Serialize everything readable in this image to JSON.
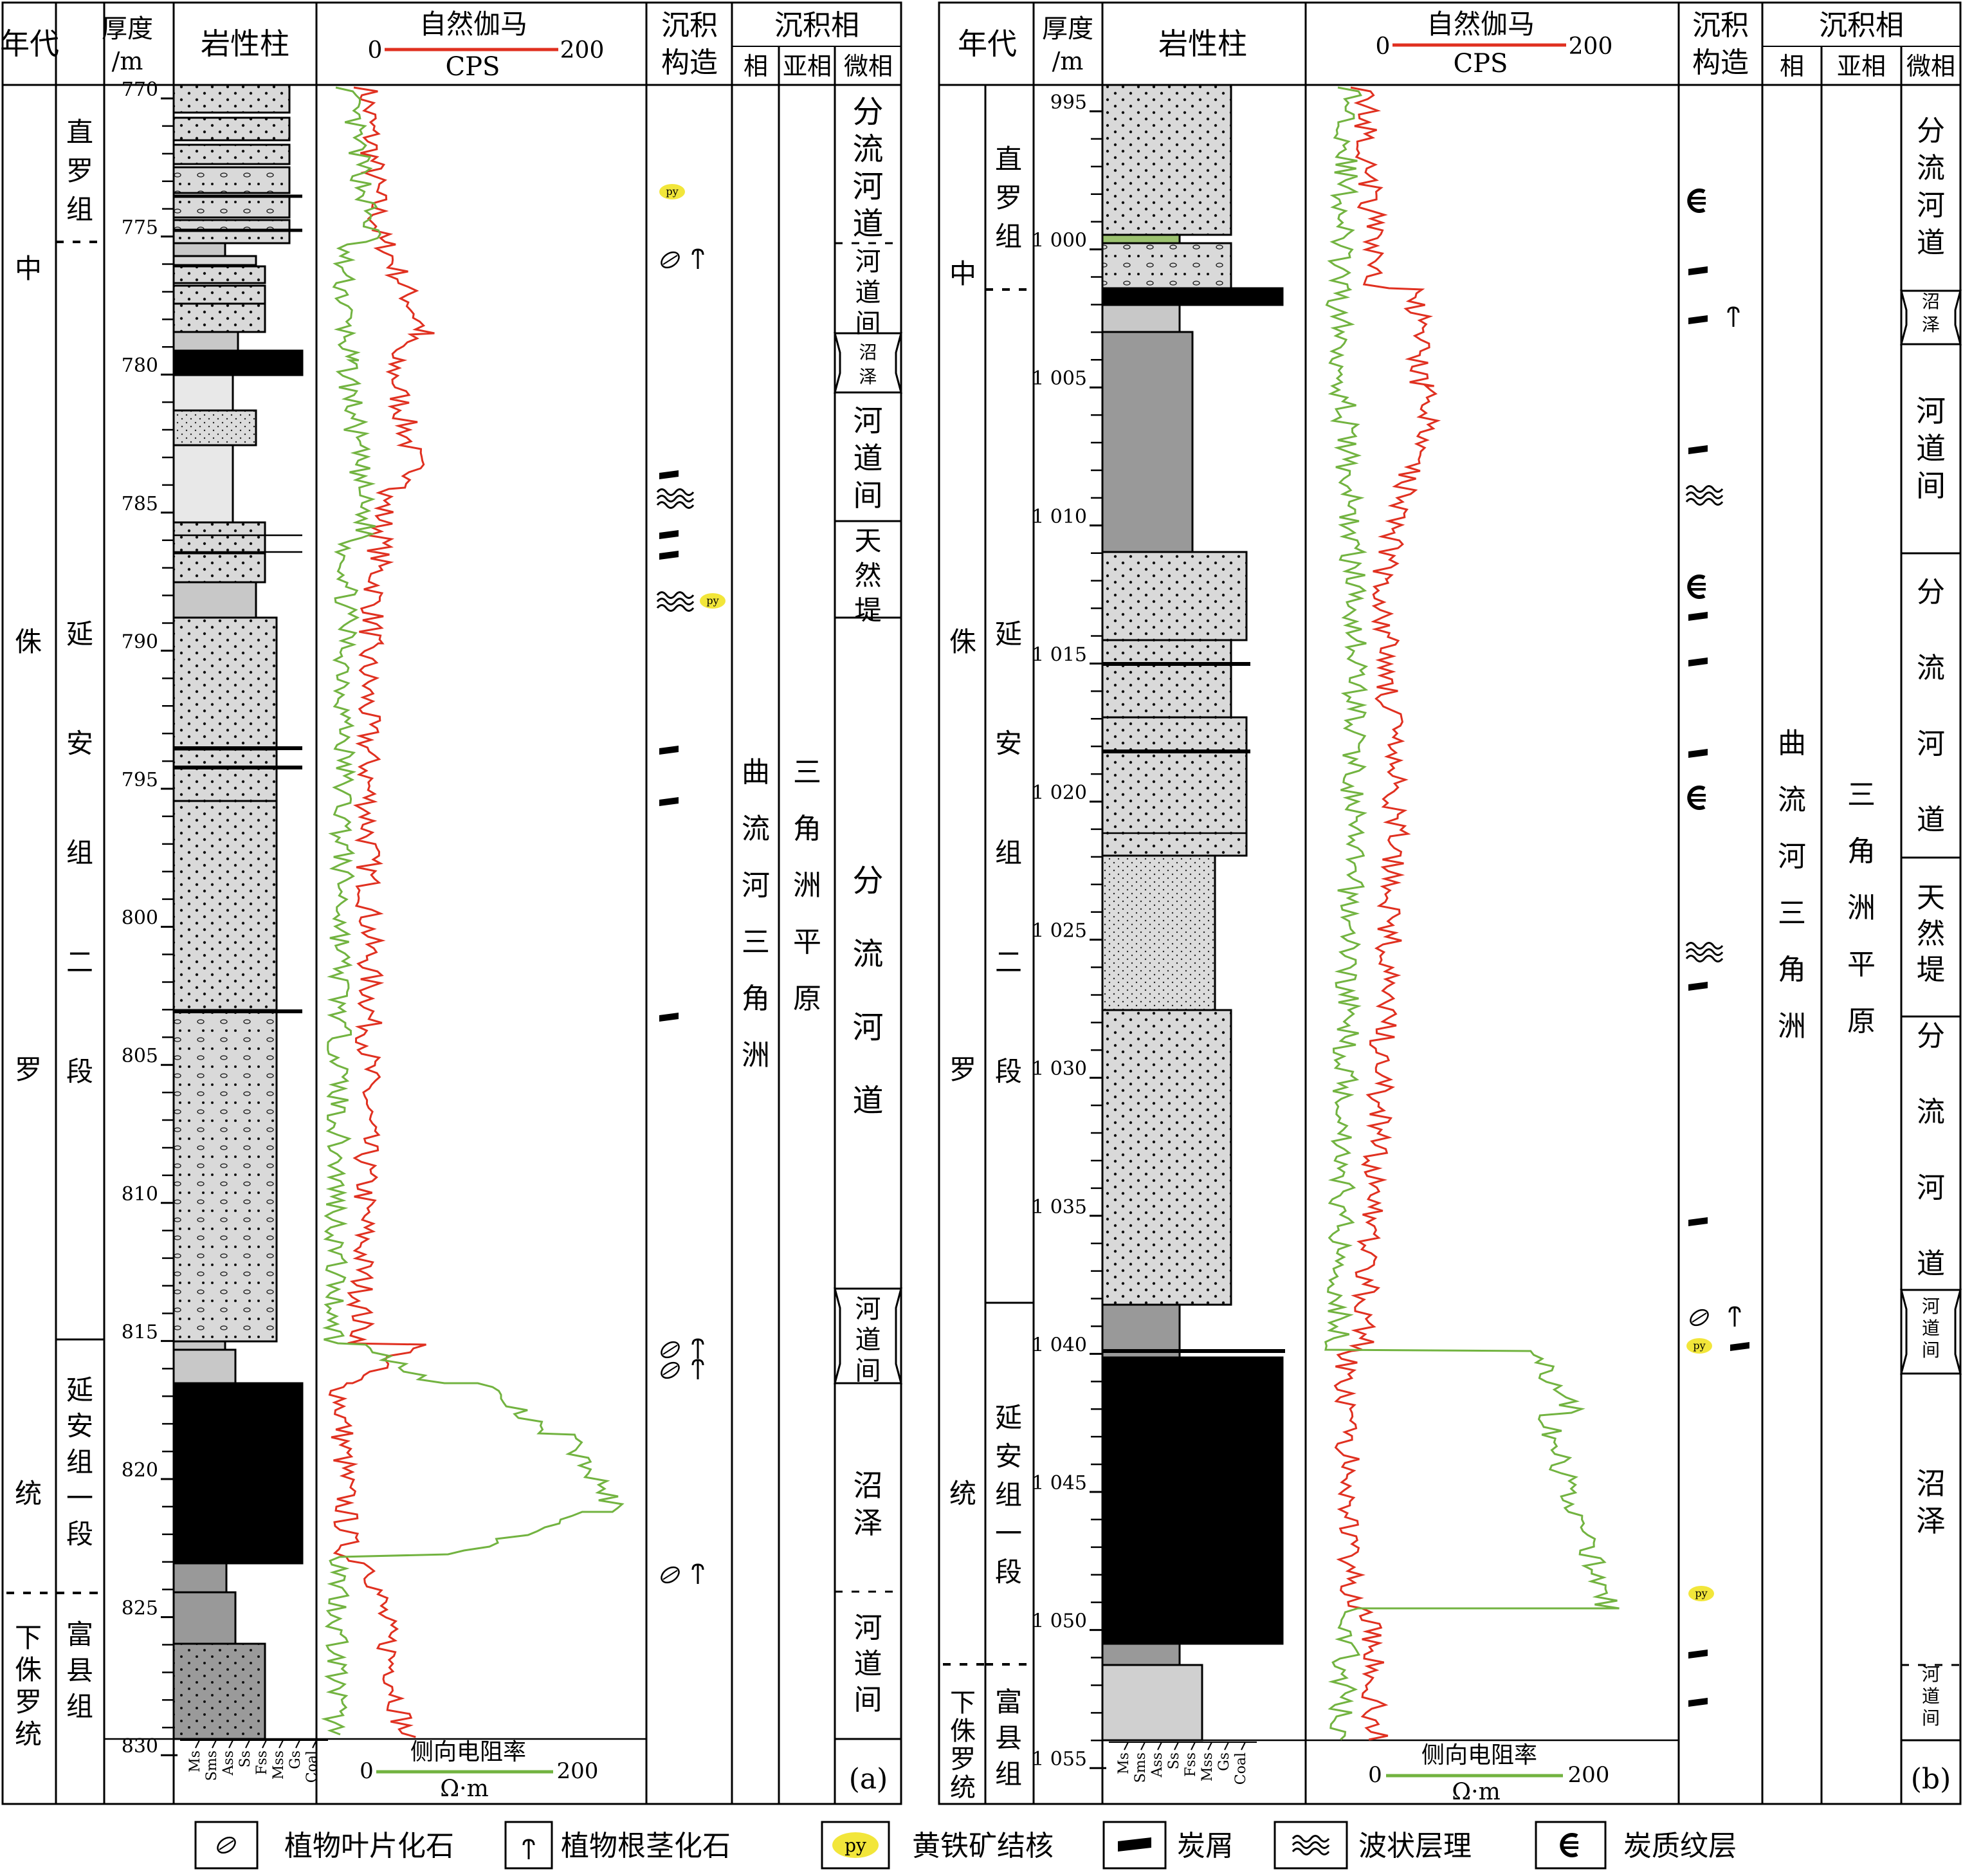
{
  "headers": {
    "era": "年代",
    "depth_line1": "厚度",
    "depth_line2": "/m",
    "lithology": "岩性柱",
    "gamma_title": "自然伽马",
    "gamma_min": "0",
    "gamma_max": "200",
    "gamma_unit": "CPS",
    "structure_line1": "沉积",
    "structure_line2": "构造",
    "facies_group": "沉积相",
    "facies": "相",
    "subfacies": "亚相",
    "microfacies": "微相",
    "resistivity_title": "侧向电阻率",
    "resistivity_min": "0",
    "resistivity_max": "200",
    "resistivity_unit": "Ω·m"
  },
  "grain_size_labels": [
    "Ms",
    "Sms",
    "Ass",
    "Ss",
    "Fss",
    "Mss",
    "Gs",
    "Coal"
  ],
  "colors": {
    "gamma": "#e03020",
    "resistivity": "#72b340",
    "coal": "#000000",
    "pyrite": "#f2e63a"
  },
  "panels": [
    {
      "tag": "(a)",
      "series": [
        "中",
        "侏",
        "罗",
        "统",
        "下侏罗统"
      ],
      "formations": [
        "直罗组",
        "延安组二段",
        "延安组一段",
        "富县组"
      ],
      "depth_ticks": [
        "770",
        "775",
        "780",
        "785",
        "790",
        "795",
        "800",
        "805",
        "810",
        "815",
        "820",
        "825",
        "830"
      ],
      "facies": "曲流河三角洲",
      "subfacies": "三角洲平原",
      "microfacies": [
        "分流河道",
        "河道间",
        "沼泽",
        "河道间",
        "天然堤",
        "分流河道",
        "河道间",
        "沼泽",
        "河道间"
      ]
    },
    {
      "tag": "(b)",
      "series": [
        "中",
        "侏",
        "罗",
        "统",
        "下侏罗统"
      ],
      "formations": [
        "直罗组",
        "延安组二段",
        "延安组一段",
        "富县组"
      ],
      "depth_ticks": [
        "995",
        "1 000",
        "1 005",
        "1 010",
        "1 015",
        "1 020",
        "1 025",
        "1 030",
        "1 035",
        "1 040",
        "1 045",
        "1 050",
        "1 055"
      ],
      "facies": "曲流河三角洲",
      "subfacies": "三角洲平原",
      "microfacies": [
        "分流河道",
        "沼泽",
        "河道间",
        "分流河道",
        "天然堤",
        "分流河道",
        "河道间",
        "沼泽",
        "河道间"
      ]
    }
  ],
  "legend": [
    {
      "icon": "leaf-fossil-icon",
      "label": "植物叶片化石"
    },
    {
      "icon": "root-fossil-icon",
      "label": "植物根茎化石"
    },
    {
      "icon": "pyrite-icon",
      "text": "py",
      "label": "黄铁矿结核"
    },
    {
      "icon": "coal-debris-icon",
      "label": "炭屑"
    },
    {
      "icon": "wavy-bedding-icon",
      "label": "波状层理"
    },
    {
      "icon": "carbonaceous-lamina-icon",
      "label": "炭质纹层"
    }
  ],
  "py_label": "py"
}
